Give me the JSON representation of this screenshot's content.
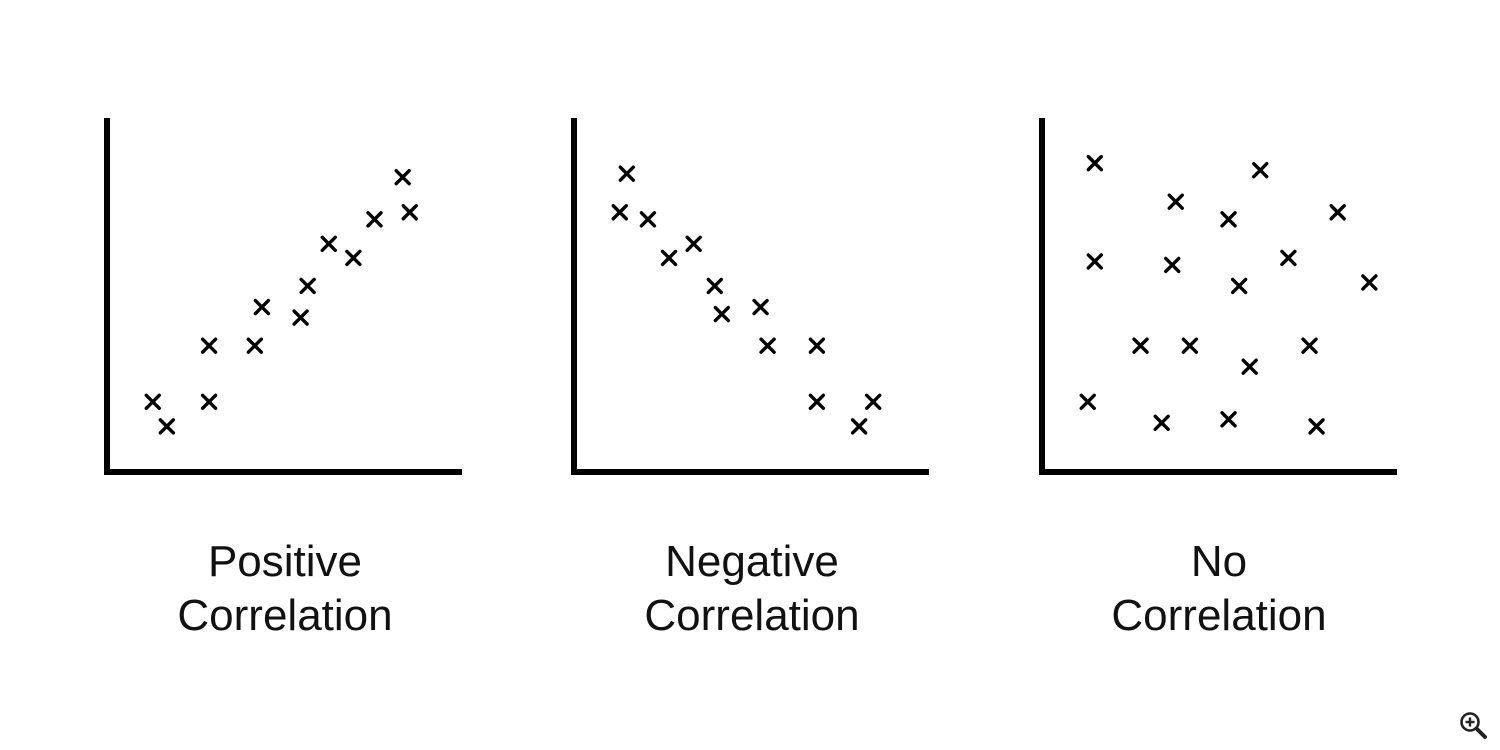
{
  "chart_data": [
    {
      "type": "scatter",
      "title": "Positive Correlation",
      "title_lines": [
        "Positive",
        "Correlation"
      ],
      "marker": "x",
      "xlim": [
        0,
        10
      ],
      "ylim": [
        0,
        10
      ],
      "grid": false,
      "points": [
        {
          "x": 1.3,
          "y": 2.0
        },
        {
          "x": 1.7,
          "y": 1.3
        },
        {
          "x": 2.9,
          "y": 2.0
        },
        {
          "x": 2.9,
          "y": 3.6
        },
        {
          "x": 4.2,
          "y": 3.6
        },
        {
          "x": 4.4,
          "y": 4.7
        },
        {
          "x": 5.5,
          "y": 4.4
        },
        {
          "x": 5.7,
          "y": 5.3
        },
        {
          "x": 6.3,
          "y": 6.5
        },
        {
          "x": 7.0,
          "y": 6.1
        },
        {
          "x": 7.6,
          "y": 7.2
        },
        {
          "x": 8.4,
          "y": 8.4
        },
        {
          "x": 8.6,
          "y": 7.4
        }
      ]
    },
    {
      "type": "scatter",
      "title": "Negative Correlation",
      "title_lines": [
        "Negative",
        "Correlation"
      ],
      "marker": "x",
      "xlim": [
        0,
        10
      ],
      "ylim": [
        0,
        10
      ],
      "grid": false,
      "points": [
        {
          "x": 1.3,
          "y": 7.4
        },
        {
          "x": 1.5,
          "y": 8.5
        },
        {
          "x": 2.1,
          "y": 7.2
        },
        {
          "x": 2.7,
          "y": 6.1
        },
        {
          "x": 3.4,
          "y": 6.5
        },
        {
          "x": 4.0,
          "y": 5.3
        },
        {
          "x": 4.2,
          "y": 4.5
        },
        {
          "x": 5.3,
          "y": 4.7
        },
        {
          "x": 5.5,
          "y": 3.6
        },
        {
          "x": 6.9,
          "y": 3.6
        },
        {
          "x": 6.9,
          "y": 2.0
        },
        {
          "x": 8.1,
          "y": 1.3
        },
        {
          "x": 8.5,
          "y": 2.0
        }
      ]
    },
    {
      "type": "scatter",
      "title": "No Correlation",
      "title_lines": [
        "No",
        "Correlation"
      ],
      "marker": "x",
      "xlim": [
        0,
        10
      ],
      "ylim": [
        0,
        10
      ],
      "grid": false,
      "points": [
        {
          "x": 1.5,
          "y": 8.8
        },
        {
          "x": 3.8,
          "y": 7.7
        },
        {
          "x": 5.3,
          "y": 7.2
        },
        {
          "x": 6.2,
          "y": 8.6
        },
        {
          "x": 8.4,
          "y": 7.4
        },
        {
          "x": 1.5,
          "y": 6.0
        },
        {
          "x": 3.7,
          "y": 5.9
        },
        {
          "x": 5.6,
          "y": 5.3
        },
        {
          "x": 7.0,
          "y": 6.1
        },
        {
          "x": 9.3,
          "y": 5.4
        },
        {
          "x": 2.8,
          "y": 3.6
        },
        {
          "x": 4.2,
          "y": 3.6
        },
        {
          "x": 5.9,
          "y": 3.0
        },
        {
          "x": 7.6,
          "y": 3.6
        },
        {
          "x": 1.3,
          "y": 2.0
        },
        {
          "x": 3.4,
          "y": 1.4
        },
        {
          "x": 5.3,
          "y": 1.5
        },
        {
          "x": 7.8,
          "y": 1.3
        }
      ]
    }
  ],
  "colors": {
    "background": "#ffffff",
    "ink": "#000000"
  },
  "controls": {
    "zoom_icon": "zoom-in-icon"
  }
}
